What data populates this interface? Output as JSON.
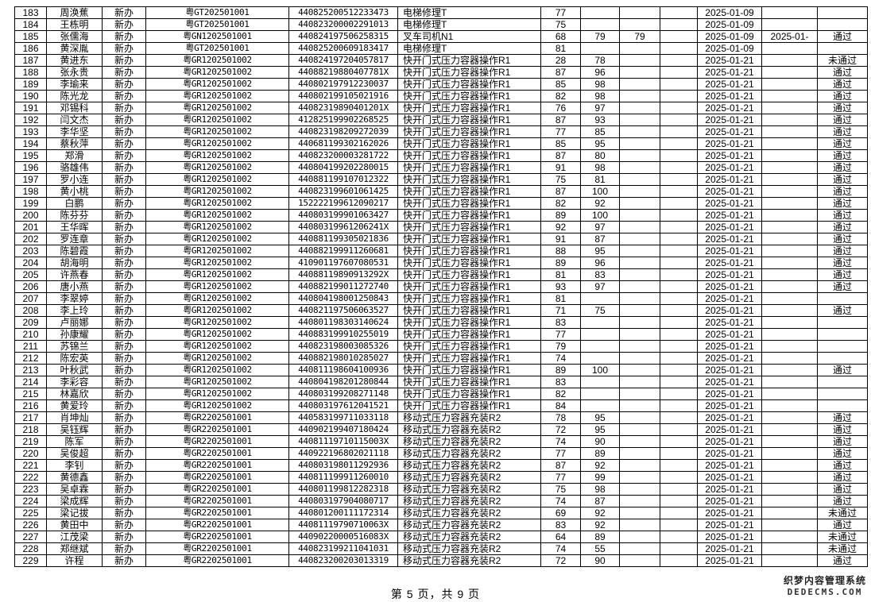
{
  "table": {
    "rows": [
      [
        "183",
        "周涣蕉",
        "新办",
        "粤GT202501001",
        "440825200512233473",
        "电梯修理T",
        "77",
        "",
        "",
        "",
        "2025-01-09",
        "",
        ""
      ],
      [
        "184",
        "王栋明",
        "新办",
        "粤GT202501001",
        "440823200002291013",
        "电梯修理T",
        "75",
        "",
        "",
        "",
        "2025-01-09",
        "",
        ""
      ],
      [
        "185",
        "张儒海",
        "新办",
        "粤GN1202501001",
        "440824197506258315",
        "叉车司机N1",
        "68",
        "79",
        "79",
        "",
        "2025-01-09",
        "2025-01-",
        "通过"
      ],
      [
        "186",
        "黄深胤",
        "新办",
        "粤GT202501001",
        "440825200609183417",
        "电梯修理T",
        "81",
        "",
        "",
        "",
        "2025-01-09",
        "",
        ""
      ],
      [
        "187",
        "黄进东",
        "新办",
        "粤GR1202501002",
        "440824197204057817",
        "快开门式压力容器操作R1",
        "28",
        "78",
        "",
        "",
        "2025-01-21",
        "",
        "未通过"
      ],
      [
        "188",
        "张永贵",
        "新办",
        "粤GR1202501002",
        "44088219880407781X",
        "快开门式压力容器操作R1",
        "87",
        "96",
        "",
        "",
        "2025-01-21",
        "",
        "通过"
      ],
      [
        "189",
        "李瑜来",
        "新办",
        "粤GR1202501002",
        "440802197912230037",
        "快开门式压力容器操作R1",
        "85",
        "98",
        "",
        "",
        "2025-01-21",
        "",
        "通过"
      ],
      [
        "190",
        "陈光龙",
        "新办",
        "粤GR1202501002",
        "440802199105021916",
        "快开门式压力容器操作R1",
        "82",
        "98",
        "",
        "",
        "2025-01-21",
        "",
        "通过"
      ],
      [
        "191",
        "邓锡科",
        "新办",
        "粤GR1202501002",
        "44082319890401201X",
        "快开门式压力容器操作R1",
        "76",
        "97",
        "",
        "",
        "2025-01-21",
        "",
        "通过"
      ],
      [
        "192",
        "闫文杰",
        "新办",
        "粤GR1202501002",
        "412825199902268525",
        "快开门式压力容器操作R1",
        "87",
        "93",
        "",
        "",
        "2025-01-21",
        "",
        "通过"
      ],
      [
        "193",
        "李华坚",
        "新办",
        "粤GR1202501002",
        "440823198209272039",
        "快开门式压力容器操作R1",
        "77",
        "85",
        "",
        "",
        "2025-01-21",
        "",
        "通过"
      ],
      [
        "194",
        "蔡秋萍",
        "新办",
        "粤GR1202501002",
        "440681199302162026",
        "快开门式压力容器操作R1",
        "85",
        "95",
        "",
        "",
        "2025-01-21",
        "",
        "通过"
      ],
      [
        "195",
        "郑滑",
        "新办",
        "粤GR1202501002",
        "440823200003281722",
        "快开门式压力容器操作R1",
        "87",
        "80",
        "",
        "",
        "2025-01-21",
        "",
        "通过"
      ],
      [
        "196",
        "骆雄伟",
        "新办",
        "粤GR1202501002",
        "440804199202280015",
        "快开门式压力容器操作R1",
        "91",
        "98",
        "",
        "",
        "2025-01-21",
        "",
        "通过"
      ],
      [
        "197",
        "罗小连",
        "新办",
        "粤GR1202501002",
        "440881199107012322",
        "快开门式压力容器操作R1",
        "75",
        "81",
        "",
        "",
        "2025-01-21",
        "",
        "通过"
      ],
      [
        "198",
        "黄小桃",
        "新办",
        "粤GR1202501002",
        "440823199601061425",
        "快开门式压力容器操作R1",
        "87",
        "100",
        "",
        "",
        "2025-01-21",
        "",
        "通过"
      ],
      [
        "199",
        "白鹏",
        "新办",
        "粤GR1202501002",
        "152222199612090217",
        "快开门式压力容器操作R1",
        "82",
        "92",
        "",
        "",
        "2025-01-21",
        "",
        "通过"
      ],
      [
        "200",
        "陈芬芬",
        "新办",
        "粤GR1202501002",
        "440803199901063427",
        "快开门式压力容器操作R1",
        "89",
        "100",
        "",
        "",
        "2025-01-21",
        "",
        "通过"
      ],
      [
        "201",
        "王华晖",
        "新办",
        "粤GR1202501002",
        "44080319961206241X",
        "快开门式压力容器操作R1",
        "92",
        "97",
        "",
        "",
        "2025-01-21",
        "",
        "通过"
      ],
      [
        "202",
        "罗连章",
        "新办",
        "粤GR1202501002",
        "440881199305021836",
        "快开门式压力容器操作R1",
        "91",
        "87",
        "",
        "",
        "2025-01-21",
        "",
        "通过"
      ],
      [
        "203",
        "陈碧霞",
        "新办",
        "粤GR1202501002",
        "440882199911260681",
        "快开门式压力容器操作R1",
        "88",
        "95",
        "",
        "",
        "2025-01-21",
        "",
        "通过"
      ],
      [
        "204",
        "胡海明",
        "新办",
        "粤GR1202501002",
        "410901197607080531",
        "快开门式压力容器操作R1",
        "89",
        "96",
        "",
        "",
        "2025-01-21",
        "",
        "通过"
      ],
      [
        "205",
        "许燕春",
        "新办",
        "粤GR1202501002",
        "44088119890913292X",
        "快开门式压力容器操作R1",
        "81",
        "83",
        "",
        "",
        "2025-01-21",
        "",
        "通过"
      ],
      [
        "206",
        "唐小燕",
        "新办",
        "粤GR1202501002",
        "440882199011272740",
        "快开门式压力容器操作R1",
        "93",
        "97",
        "",
        "",
        "2025-01-21",
        "",
        "通过"
      ],
      [
        "207",
        "李翠婷",
        "新办",
        "粤GR1202501002",
        "440804198001250843",
        "快开门式压力容器操作R1",
        "81",
        "",
        "",
        "",
        "2025-01-21",
        "",
        ""
      ],
      [
        "208",
        "李上玲",
        "新办",
        "粤GR1202501002",
        "440821197506063527",
        "快开门式压力容器操作R1",
        "71",
        "75",
        "",
        "",
        "2025-01-21",
        "",
        "通过"
      ],
      [
        "209",
        "卢丽娜",
        "新办",
        "粤GR1202501002",
        "440801198303140624",
        "快开门式压力容器操作R1",
        "83",
        "",
        "",
        "",
        "2025-01-21",
        "",
        ""
      ],
      [
        "210",
        "孙康耀",
        "新办",
        "粤GR1202501002",
        "440883199910255019",
        "快开门式压力容器操作R1",
        "77",
        "",
        "",
        "",
        "2025-01-21",
        "",
        ""
      ],
      [
        "211",
        "苏锦兰",
        "新办",
        "粤GR1202501002",
        "440823198003085326",
        "快开门式压力容器操作R1",
        "79",
        "",
        "",
        "",
        "2025-01-21",
        "",
        ""
      ],
      [
        "212",
        "陈宏英",
        "新办",
        "粤GR1202501002",
        "440882198010285027",
        "快开门式压力容器操作R1",
        "74",
        "",
        "",
        "",
        "2025-01-21",
        "",
        ""
      ],
      [
        "213",
        "叶秋武",
        "新办",
        "粤GR1202501002",
        "440811198604100936",
        "快开门式压力容器操作R1",
        "89",
        "100",
        "",
        "",
        "2025-01-21",
        "",
        "通过"
      ],
      [
        "214",
        "李彩容",
        "新办",
        "粤GR1202501002",
        "440804198201280844",
        "快开门式压力容器操作R1",
        "83",
        "",
        "",
        "",
        "2025-01-21",
        "",
        ""
      ],
      [
        "215",
        "林嘉欣",
        "新办",
        "粤GR1202501002",
        "440803199208271148",
        "快开门式压力容器操作R1",
        "82",
        "",
        "",
        "",
        "2025-01-21",
        "",
        ""
      ],
      [
        "216",
        "黄爱玲",
        "新办",
        "粤GR1202501002",
        "440803197612041521",
        "快开门式压力容器操作R1",
        "84",
        "",
        "",
        "",
        "2025-01-21",
        "",
        ""
      ],
      [
        "217",
        "肖坤灿",
        "新办",
        "粤GR2202501001",
        "440583199711033118",
        "移动式压力容器充装R2",
        "78",
        "95",
        "",
        "",
        "2025-01-21",
        "",
        "通过"
      ],
      [
        "218",
        "吴钰辉",
        "新办",
        "粤GR2202501001",
        "440902199407180424",
        "移动式压力容器充装R2",
        "72",
        "95",
        "",
        "",
        "2025-01-21",
        "",
        "通过"
      ],
      [
        "219",
        "陈军",
        "新办",
        "粤GR2202501001",
        "44081119710115003X",
        "移动式压力容器充装R2",
        "74",
        "90",
        "",
        "",
        "2025-01-21",
        "",
        "通过"
      ],
      [
        "220",
        "吴俊超",
        "新办",
        "粤GR2202501001",
        "440922196802021118",
        "移动式压力容器充装R2",
        "77",
        "89",
        "",
        "",
        "2025-01-21",
        "",
        "通过"
      ],
      [
        "221",
        "李钊",
        "新办",
        "粤GR2202501001",
        "440803198011292936",
        "移动式压力容器充装R2",
        "87",
        "92",
        "",
        "",
        "2025-01-21",
        "",
        "通过"
      ],
      [
        "222",
        "黄德鑫",
        "新办",
        "粤GR2202501001",
        "440811199911260010",
        "移动式压力容器充装R2",
        "77",
        "99",
        "",
        "",
        "2025-01-21",
        "",
        "通过"
      ],
      [
        "223",
        "吴卓霖",
        "新办",
        "粤GR2202501001",
        "440801199812282318",
        "移动式压力容器充装R2",
        "75",
        "98",
        "",
        "",
        "2025-01-21",
        "",
        "通过"
      ],
      [
        "224",
        "梁成辉",
        "新办",
        "粤GR2202501001",
        "440803197904080717",
        "移动式压力容器充装R2",
        "74",
        "87",
        "",
        "",
        "2025-01-21",
        "",
        "通过"
      ],
      [
        "225",
        "梁记拔",
        "新办",
        "粤GR2202501001",
        "440801200111172314",
        "移动式压力容器充装R2",
        "69",
        "92",
        "",
        "",
        "2025-01-21",
        "",
        "未通过"
      ],
      [
        "226",
        "黄田中",
        "新办",
        "粤GR2202501001",
        "44081119790710063X",
        "移动式压力容器充装R2",
        "83",
        "92",
        "",
        "",
        "2025-01-21",
        "",
        "通过"
      ],
      [
        "227",
        "江茂梁",
        "新办",
        "粤GR2202501001",
        "44090220000516083X",
        "移动式压力容器充装R2",
        "64",
        "89",
        "",
        "",
        "2025-01-21",
        "",
        "未通过"
      ],
      [
        "228",
        "郑继斌",
        "新办",
        "粤GR2202501001",
        "440823199211041031",
        "移动式压力容器充装R2",
        "74",
        "55",
        "",
        "",
        "2025-01-21",
        "",
        "未通过"
      ],
      [
        "229",
        "许程",
        "新办",
        "粤GR2202501001",
        "440823200203013319",
        "移动式压力容器充装R2",
        "72",
        "90",
        "",
        "",
        "2025-01-21",
        "",
        "通过"
      ]
    ]
  },
  "footer": {
    "page_label": "第 5 页，共 9 页"
  },
  "watermark": {
    "line1": "织梦内容管理系统",
    "line2": "DEDECMS.COM"
  }
}
